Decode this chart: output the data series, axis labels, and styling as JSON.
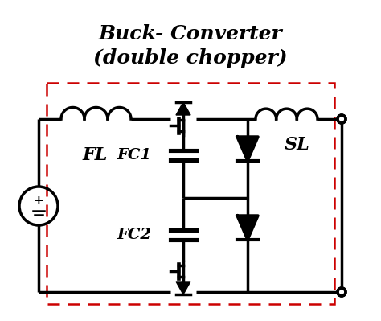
{
  "title_line1": "Buck- Converter",
  "title_line2": "(double chopper)",
  "bg_color": "#ffffff",
  "line_color": "#000000",
  "border_color": "#cc0000",
  "label_FL": "FL",
  "label_SL": "SL",
  "label_FC1": "FC1",
  "label_FC2": "FC2",
  "figsize": [
    4.74,
    3.99
  ],
  "dpi": 100
}
